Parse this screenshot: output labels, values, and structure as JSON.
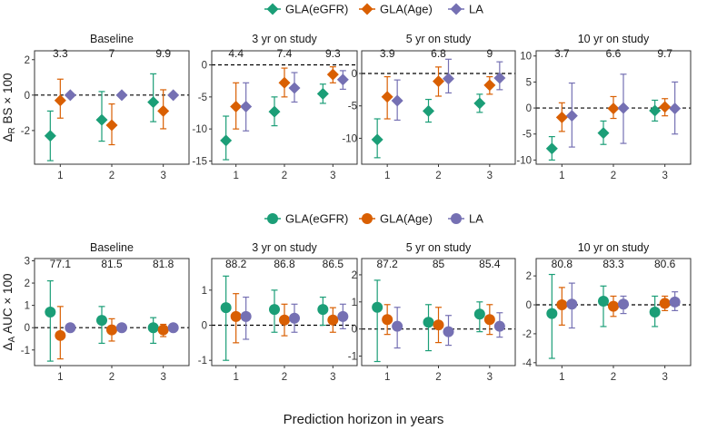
{
  "colors": {
    "GLA(eGFR)": "#1b9e77",
    "GLA(Age)": "#d95f02",
    "LA": "#7570b3",
    "panel_border": "#333333",
    "strip": "#ffffff"
  },
  "x_axis_title": "Prediction horizon in years",
  "legends": [
    {
      "shape": "diamond",
      "entries": [
        "GLA(eGFR)",
        "GLA(Age)",
        "LA"
      ]
    },
    {
      "shape": "circle",
      "entries": [
        "GLA(eGFR)",
        "GLA(Age)",
        "LA"
      ]
    }
  ],
  "chart_data": [
    {
      "type": "scatter",
      "row_label": "ΔR BS × 100",
      "ylabel": {
        "delta": "Δ",
        "sub": "R",
        "rest": " BS × 100"
      },
      "marker": "diamond",
      "categories": [
        1,
        2,
        3
      ],
      "panels": [
        {
          "title": "Baseline",
          "ylim": [
            -3.9,
            2.5
          ],
          "yticks": [
            -2,
            0,
            2
          ],
          "annotations": [
            "3.3",
            "7",
            "9.9"
          ],
          "series": [
            {
              "name": "GLA(eGFR)",
              "values": [
                -2.3,
                -1.4,
                -0.4
              ],
              "lower": [
                -3.7,
                -2.6,
                -1.5
              ],
              "upper": [
                -0.9,
                0.2,
                1.2
              ]
            },
            {
              "name": "GLA(Age)",
              "values": [
                -0.3,
                -1.7,
                -0.9
              ],
              "lower": [
                -1.3,
                -2.8,
                -1.9
              ],
              "upper": [
                0.9,
                -0.5,
                0.3
              ]
            },
            {
              "name": "LA",
              "values": [
                0.0,
                0.0,
                0.0
              ],
              "lower": [
                -0.05,
                -0.05,
                -0.05
              ],
              "upper": [
                0.05,
                0.05,
                0.05
              ]
            }
          ]
        },
        {
          "title": "3 yr on study",
          "ylim": [
            -15.5,
            2.2
          ],
          "yticks": [
            -15,
            -10,
            -5,
            0
          ],
          "annotations": [
            "4.4",
            "7.4",
            "9.3"
          ],
          "series": [
            {
              "name": "GLA(eGFR)",
              "values": [
                -11.8,
                -7.3,
                -4.5
              ],
              "lower": [
                -14.8,
                -9.5,
                -6.0
              ],
              "upper": [
                -8.0,
                -5.0,
                -3.0
              ]
            },
            {
              "name": "GLA(Age)",
              "values": [
                -6.5,
                -2.8,
                -1.5
              ],
              "lower": [
                -10.0,
                -5.0,
                -2.8
              ],
              "upper": [
                -2.8,
                -0.5,
                -0.3
              ]
            },
            {
              "name": "LA",
              "values": [
                -6.5,
                -3.6,
                -2.3
              ],
              "lower": [
                -10.3,
                -5.8,
                -3.8
              ],
              "upper": [
                -2.8,
                -1.2,
                -0.9
              ]
            }
          ]
        },
        {
          "title": "5 yr on study",
          "ylim": [
            -14,
            3.5
          ],
          "yticks": [
            -10,
            -5,
            0
          ],
          "annotations": [
            "3.9",
            "6.8",
            "9"
          ],
          "series": [
            {
              "name": "GLA(eGFR)",
              "values": [
                -10.2,
                -5.8,
                -4.6
              ],
              "lower": [
                -13.0,
                -7.5,
                -6.0
              ],
              "upper": [
                -7.0,
                -4.0,
                -3.2
              ]
            },
            {
              "name": "GLA(Age)",
              "values": [
                -3.6,
                -1.2,
                -1.8
              ],
              "lower": [
                -7.0,
                -3.5,
                -3.2
              ],
              "upper": [
                -0.5,
                1.0,
                -0.5
              ]
            },
            {
              "name": "LA",
              "values": [
                -4.2,
                -0.8,
                -0.7
              ],
              "lower": [
                -7.2,
                -3.0,
                -2.5
              ],
              "upper": [
                -1.0,
                2.2,
                1.8
              ]
            }
          ]
        },
        {
          "title": "10 yr on study",
          "ylim": [
            -10.8,
            11
          ],
          "yticks": [
            -10,
            -5,
            0,
            5,
            10
          ],
          "annotations": [
            "3.7",
            "6.6",
            "9.7"
          ],
          "series": [
            {
              "name": "GLA(eGFR)",
              "values": [
                -7.8,
                -4.8,
                -0.5
              ],
              "lower": [
                -10.0,
                -7.0,
                -2.5
              ],
              "upper": [
                -5.5,
                -2.5,
                1.5
              ]
            },
            {
              "name": "GLA(Age)",
              "values": [
                -1.8,
                -0.1,
                0.2
              ],
              "lower": [
                -4.5,
                -2.0,
                -1.5
              ],
              "upper": [
                1.0,
                2.2,
                1.8
              ]
            },
            {
              "name": "LA",
              "values": [
                -1.5,
                0.0,
                -0.1
              ],
              "lower": [
                -7.5,
                -6.8,
                -5.0
              ],
              "upper": [
                4.8,
                6.5,
                5.0
              ]
            }
          ]
        }
      ]
    },
    {
      "type": "scatter",
      "row_label": "ΔA AUC × 100",
      "ylabel": {
        "delta": "Δ",
        "sub": "A",
        "rest": " AUC × 100"
      },
      "marker": "circle",
      "categories": [
        1,
        2,
        3
      ],
      "panels": [
        {
          "title": "Baseline",
          "ylim": [
            -1.7,
            3.1
          ],
          "yticks": [
            -1,
            0,
            1,
            2,
            3
          ],
          "annotations": [
            "77.1",
            "81.5",
            "81.8"
          ],
          "series": [
            {
              "name": "GLA(eGFR)",
              "values": [
                0.7,
                0.33,
                0.0
              ],
              "lower": [
                -1.5,
                -0.7,
                -0.7
              ],
              "upper": [
                2.1,
                0.95,
                0.45
              ]
            },
            {
              "name": "GLA(Age)",
              "values": [
                -0.35,
                -0.1,
                -0.1
              ],
              "lower": [
                -1.4,
                -0.6,
                -0.4
              ],
              "upper": [
                0.95,
                0.4,
                0.15
              ]
            },
            {
              "name": "LA",
              "values": [
                0.0,
                0.0,
                0.0
              ],
              "lower": [
                -0.03,
                -0.03,
                -0.03
              ],
              "upper": [
                0.03,
                0.03,
                0.03
              ]
            }
          ]
        },
        {
          "title": "3 yr on study",
          "ylim": [
            -1.15,
            1.9
          ],
          "yticks": [
            -1,
            0,
            1
          ],
          "annotations": [
            "88.2",
            "86.8",
            "86.5"
          ],
          "series": [
            {
              "name": "GLA(eGFR)",
              "values": [
                0.5,
                0.45,
                0.45
              ],
              "lower": [
                -1.0,
                -0.2,
                0.0
              ],
              "upper": [
                1.4,
                1.0,
                0.8
              ]
            },
            {
              "name": "GLA(Age)",
              "values": [
                0.25,
                0.15,
                0.15
              ],
              "lower": [
                -0.5,
                -0.3,
                -0.2
              ],
              "upper": [
                0.9,
                0.6,
                0.5
              ]
            },
            {
              "name": "LA",
              "values": [
                0.25,
                0.2,
                0.25
              ],
              "lower": [
                -0.4,
                -0.2,
                -0.1
              ],
              "upper": [
                0.8,
                0.6,
                0.6
              ]
            }
          ]
        },
        {
          "title": "5 yr on study",
          "ylim": [
            -1.35,
            2.6
          ],
          "yticks": [
            -1,
            0,
            1,
            2
          ],
          "annotations": [
            "87.2",
            "85",
            "85.4"
          ],
          "series": [
            {
              "name": "GLA(eGFR)",
              "values": [
                0.8,
                0.25,
                0.55
              ],
              "lower": [
                -1.2,
                -0.8,
                -0.1
              ],
              "upper": [
                1.8,
                0.9,
                1.0
              ]
            },
            {
              "name": "GLA(Age)",
              "values": [
                0.35,
                0.15,
                0.35
              ],
              "lower": [
                -0.2,
                -0.5,
                -0.2
              ],
              "upper": [
                0.9,
                0.8,
                0.9
              ]
            },
            {
              "name": "LA",
              "values": [
                0.1,
                -0.1,
                0.1
              ],
              "lower": [
                -0.7,
                -0.6,
                -0.3
              ],
              "upper": [
                0.8,
                0.5,
                0.6
              ]
            }
          ]
        },
        {
          "title": "10 yr on study",
          "ylim": [
            -4.2,
            3.2
          ],
          "yticks": [
            -4,
            -2,
            0,
            2
          ],
          "annotations": [
            "80.8",
            "83.3",
            "80.6"
          ],
          "series": [
            {
              "name": "GLA(eGFR)",
              "values": [
                -0.6,
                0.25,
                -0.5
              ],
              "lower": [
                -3.7,
                -1.5,
                -1.5
              ],
              "upper": [
                2.1,
                1.3,
                0.6
              ]
            },
            {
              "name": "GLA(Age)",
              "values": [
                0.0,
                -0.1,
                0.1
              ],
              "lower": [
                -1.4,
                -0.8,
                -0.4
              ],
              "upper": [
                1.2,
                0.6,
                0.6
              ]
            },
            {
              "name": "LA",
              "values": [
                0.05,
                0.05,
                0.2
              ],
              "lower": [
                -1.6,
                -0.6,
                -0.4
              ],
              "upper": [
                1.5,
                0.6,
                0.9
              ]
            }
          ]
        }
      ]
    }
  ]
}
